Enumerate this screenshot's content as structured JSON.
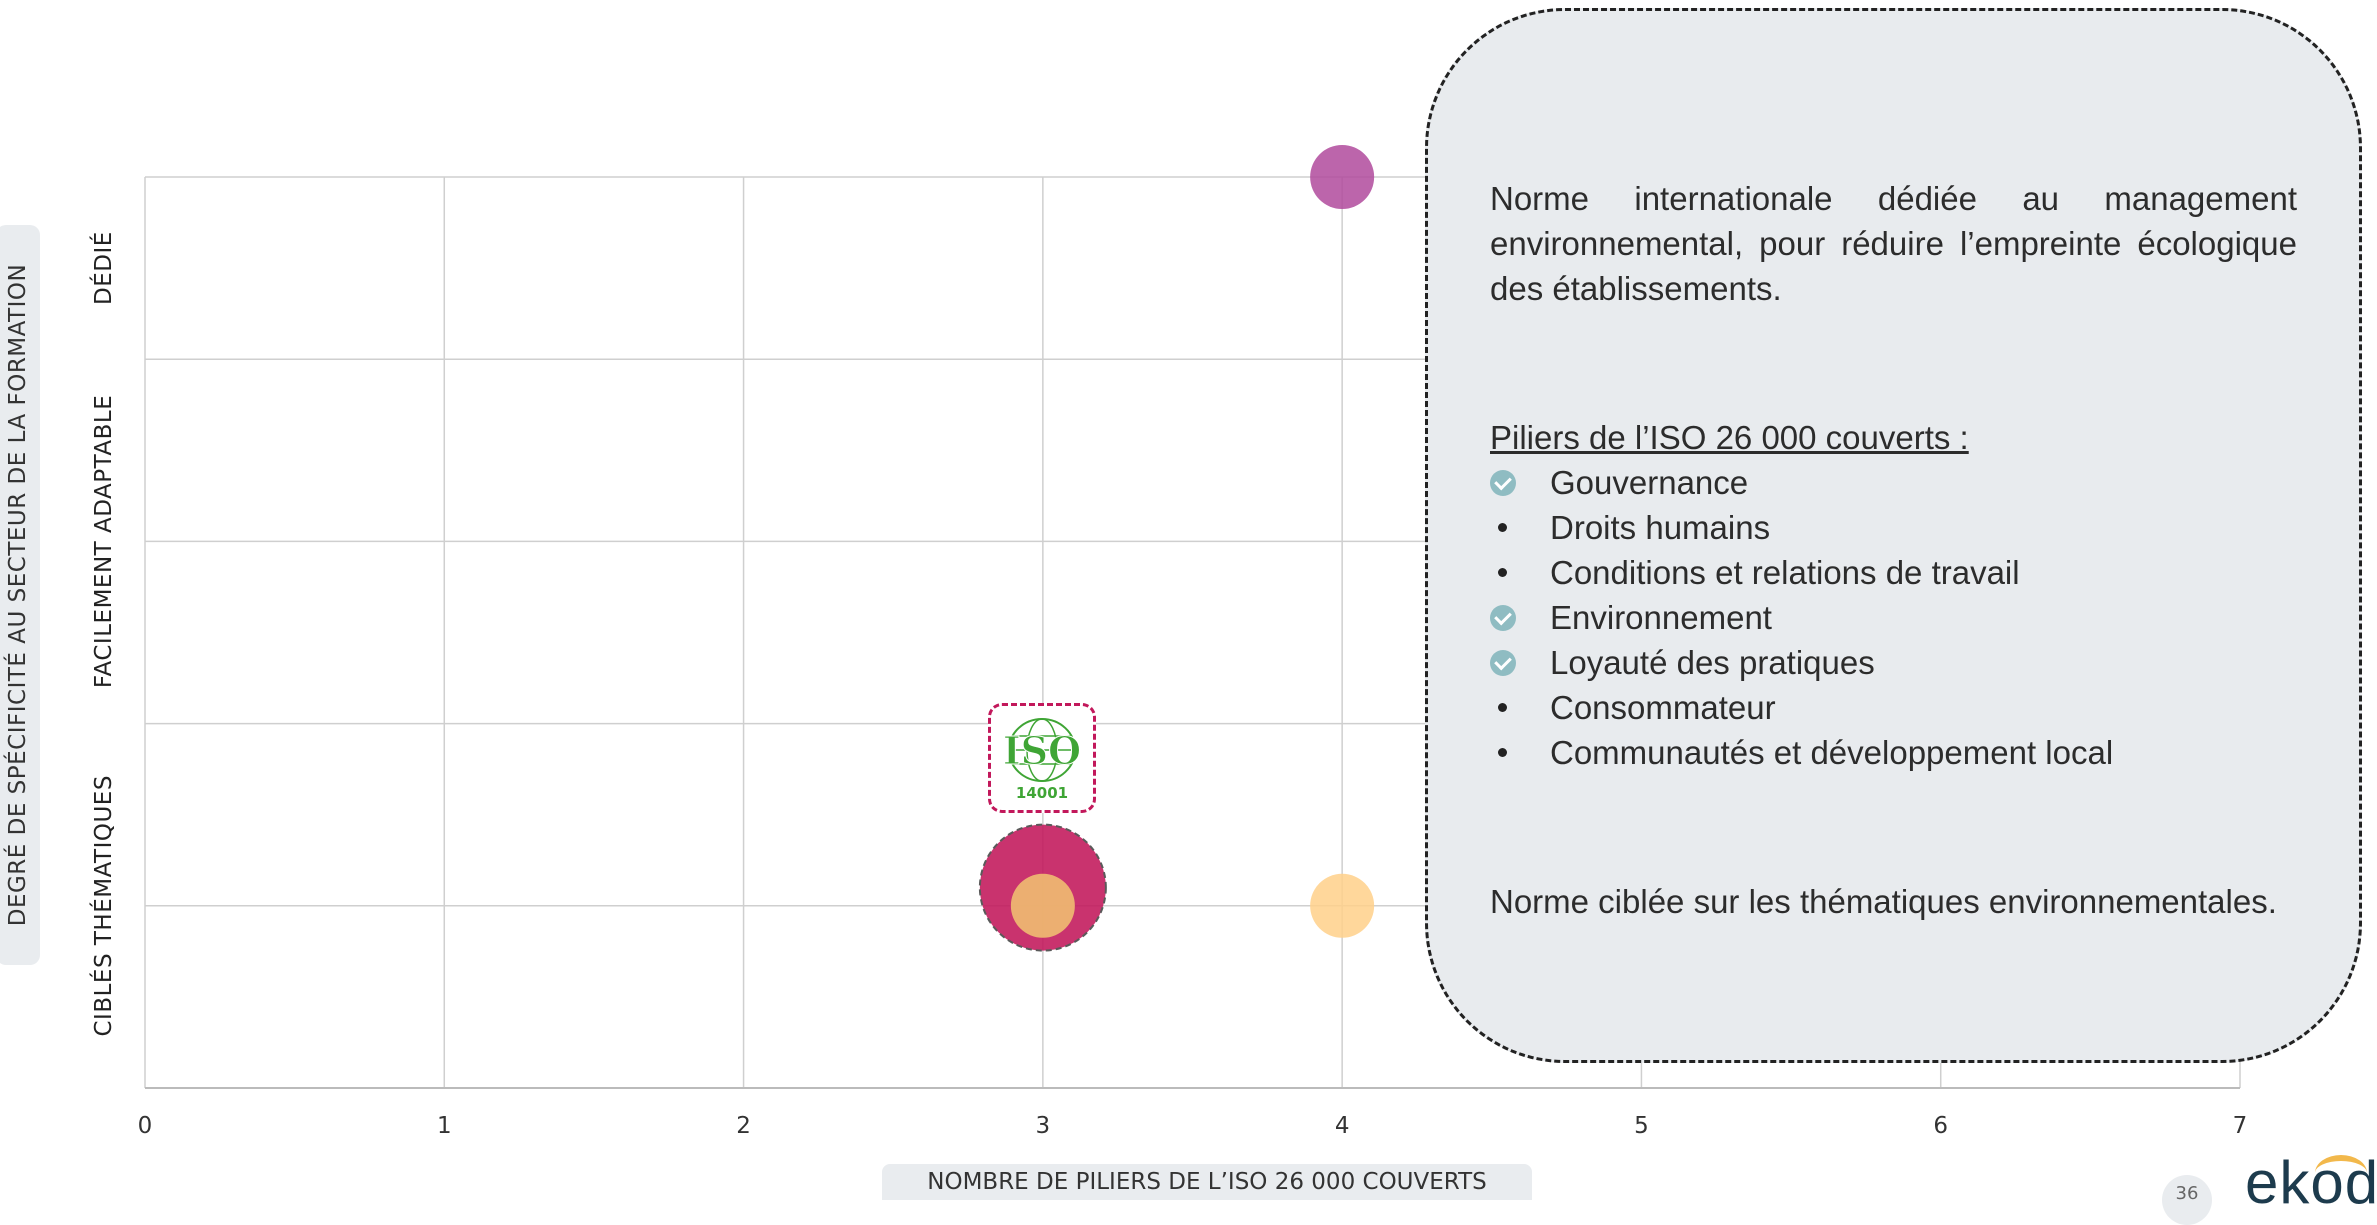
{
  "chart_data": {
    "type": "scatter",
    "xlabel": "NOMBRE DE PILIERS DE L’ISO 26 000 COUVERTS",
    "ylabel": "DEGRÉ DE SPÉCIFICITÉ AU SECTEUR DE LA FORMATION",
    "xlim": [
      0,
      7
    ],
    "ylim": [
      0,
      5
    ],
    "x_ticks": [
      "0",
      "1",
      "2",
      "3",
      "4",
      "5",
      "6",
      "7"
    ],
    "y_categories": [
      {
        "label": "CIBLÉS THÉMATIQUES",
        "range": [
          0,
          2
        ]
      },
      {
        "label": "FACILEMENT ADAPTABLE",
        "range": [
          2,
          4
        ]
      },
      {
        "label": "DÉDIÉ",
        "range": [
          4,
          5
        ]
      }
    ],
    "grid": true,
    "points": [
      {
        "x": 4,
        "y": 5,
        "size": "small",
        "color": "#b04a9c"
      },
      {
        "x": 3,
        "y": 1.1,
        "size": "large",
        "color": "#c2185b",
        "highlight": true
      },
      {
        "x": 3,
        "y": 1,
        "size": "small",
        "color": "#f2c572"
      },
      {
        "x": 4,
        "y": 1,
        "size": "small",
        "color": "#ffd08a"
      }
    ]
  },
  "badge": {
    "icon": "iso-14001-logo",
    "text_main": "ISO",
    "text_sub": "14001",
    "color": "#3fa535"
  },
  "info": {
    "description": "Norme internationale dédiée au management environnemental, pour réduire l’empreinte écologique des établissements.",
    "pillars_title": "Piliers de l’ISO 26 000 couverts :",
    "pillars": [
      {
        "label": "Gouvernance",
        "covered": true
      },
      {
        "label": "Droits humains",
        "covered": false
      },
      {
        "label": "Conditions et relations de travail",
        "covered": false
      },
      {
        "label": "Environnement",
        "covered": true
      },
      {
        "label": "Loyauté des pratiques",
        "covered": true
      },
      {
        "label": "Consommateur",
        "covered": false
      },
      {
        "label": "Communautés et développement local",
        "covered": false
      }
    ],
    "note": "Norme ciblée sur les thématiques environnementales."
  },
  "footer": {
    "page_number": "36",
    "logo": "ekod"
  }
}
